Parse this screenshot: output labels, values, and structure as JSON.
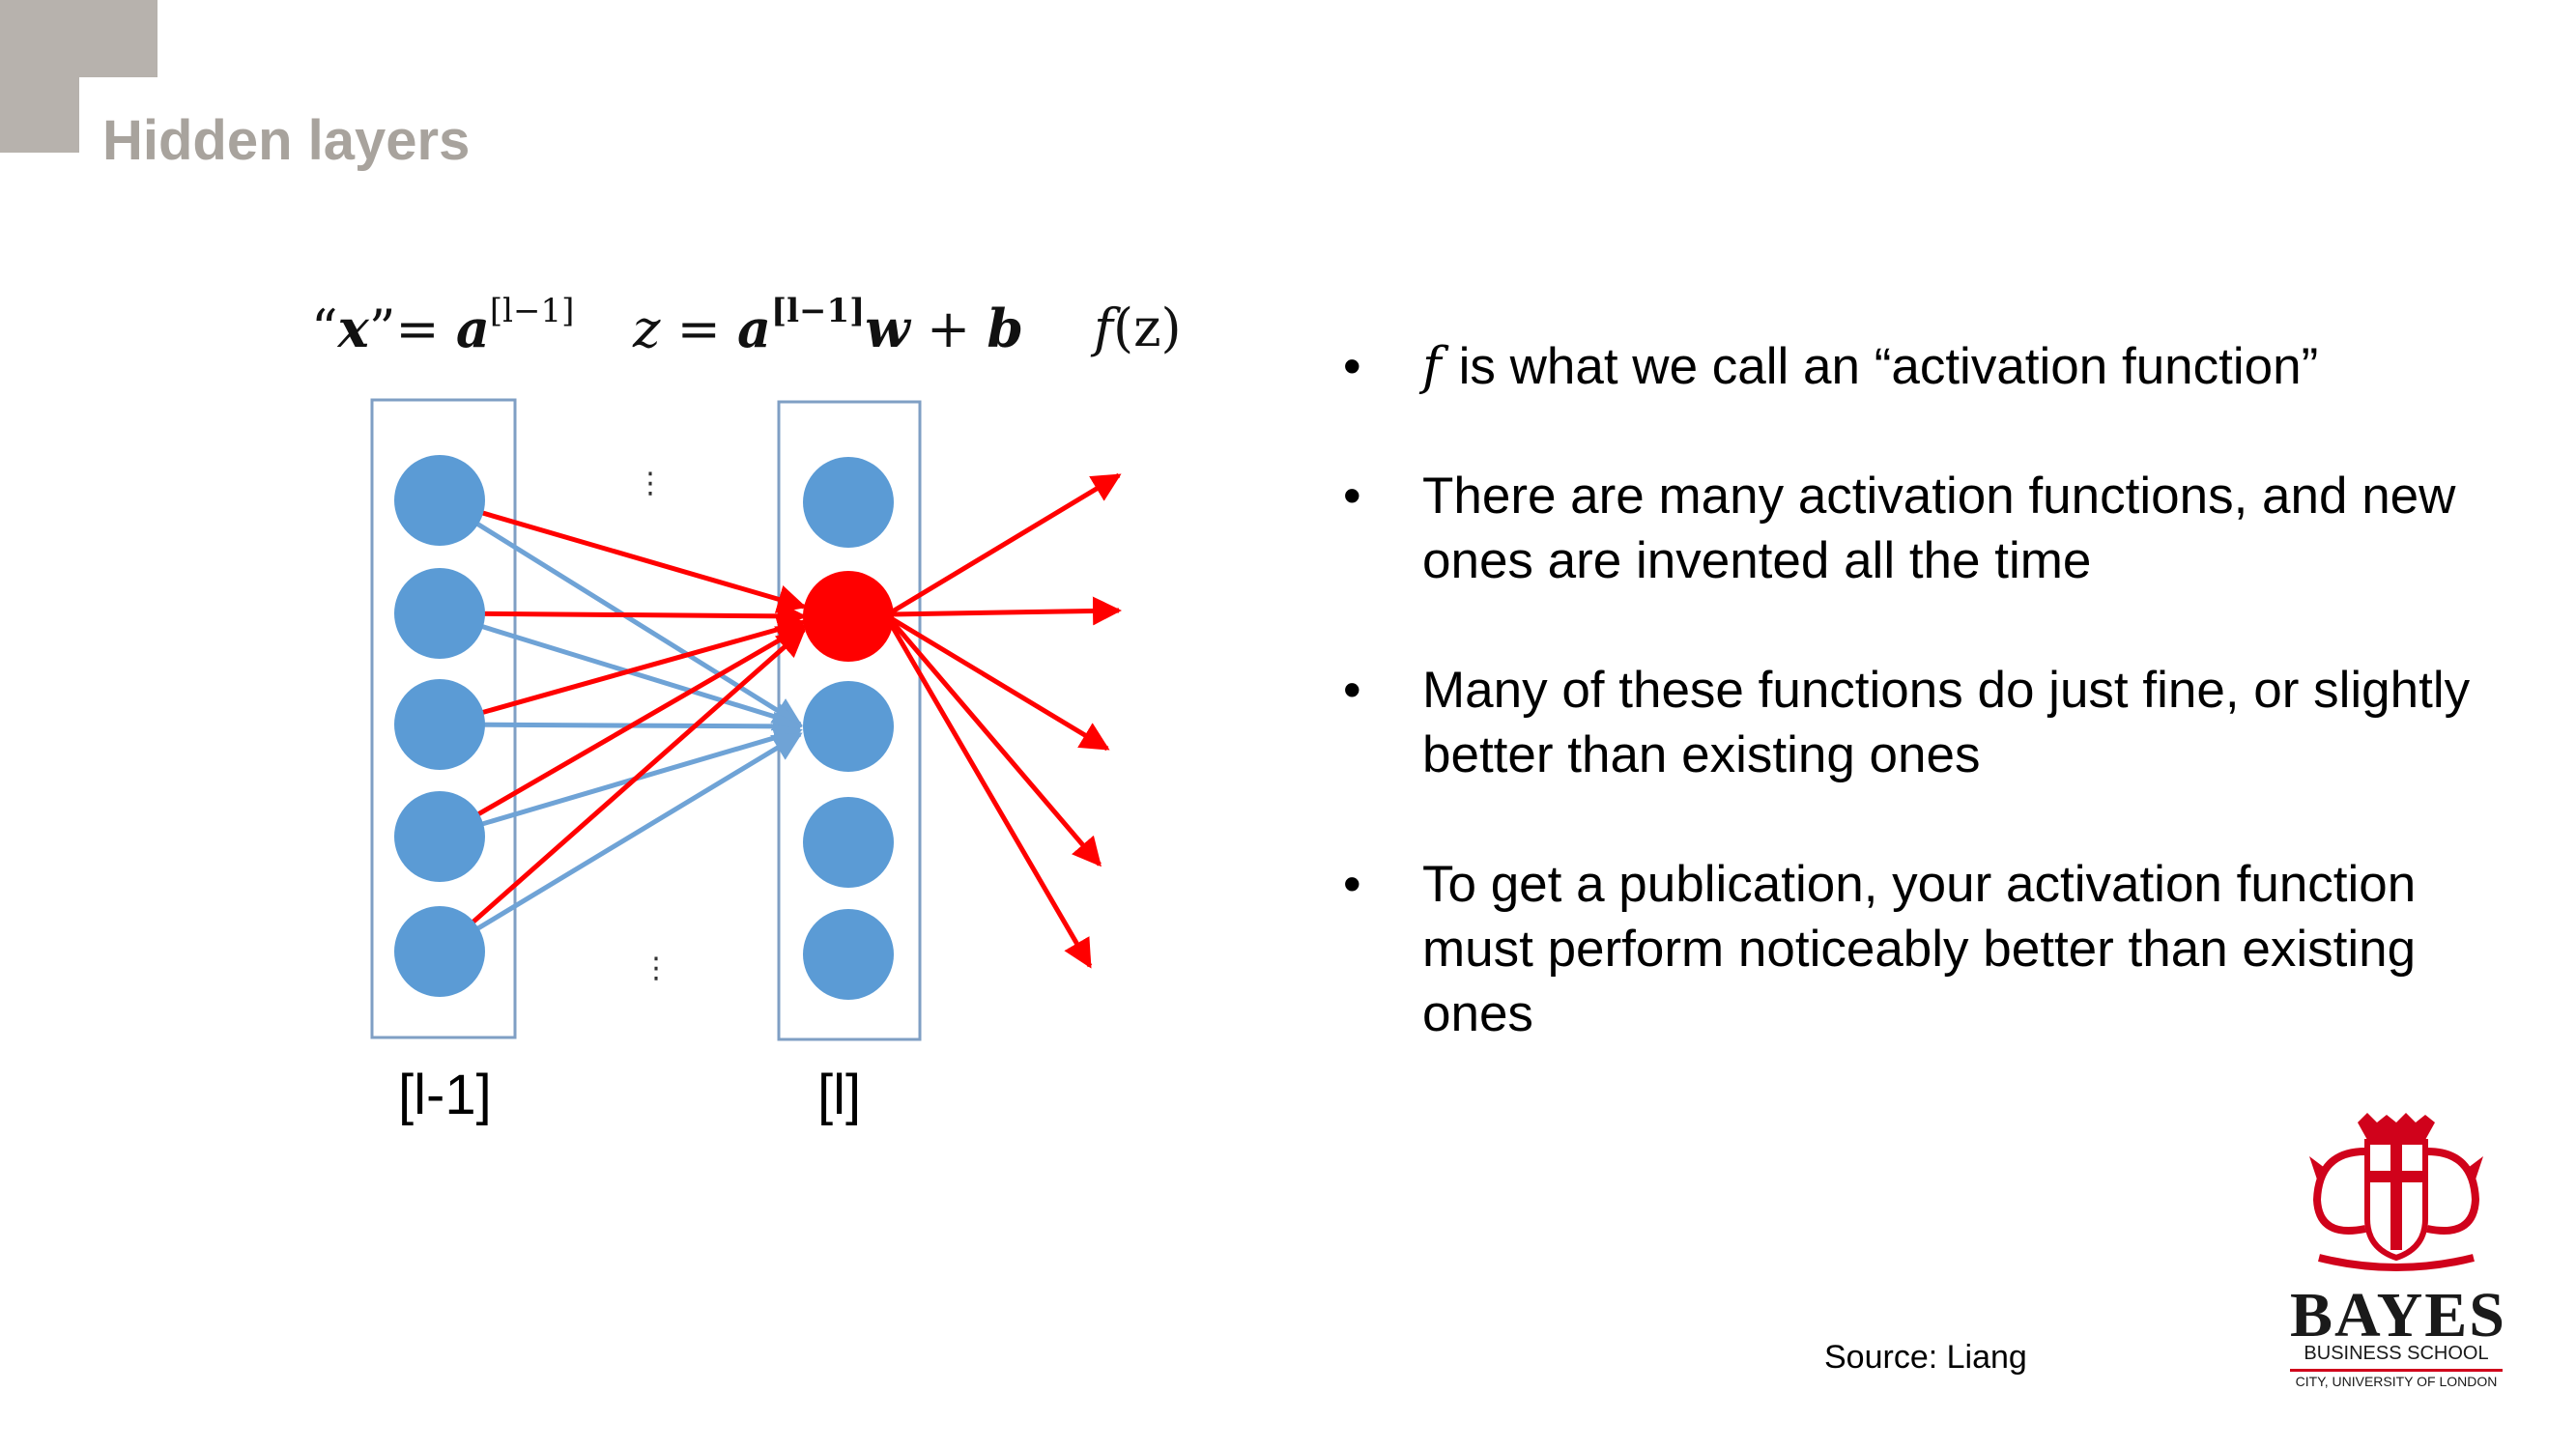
{
  "slide": {
    "title": "Hidden layers",
    "formulas": {
      "x_quote_open": "“",
      "x_var": "x",
      "x_quote_close": "”",
      "equals": "= ",
      "a_var": "a",
      "sup_prev": "[l−1]",
      "z_var": "z",
      "z_equals": " = ",
      "z_a": "a",
      "z_sup": "[l−1]",
      "z_w": "w",
      "plus": " + ",
      "z_b": "b",
      "f_var": "f",
      "f_arg": "(z)"
    },
    "layer_labels": {
      "previous": "[l-1]",
      "current": "[l]"
    },
    "ellipsis": "⋮",
    "bullets": [
      {
        "symbol": "f",
        "text": "is what we call an “activation function”"
      },
      {
        "text": "There are many activation functions, and new ones are invented all the time"
      },
      {
        "text": "Many of these functions do just fine, or slightly better than existing ones"
      },
      {
        "text": "To get a publication, your activation function must perform noticeably better than existing ones"
      }
    ],
    "bullet_char": "•",
    "source": "Source: Liang",
    "logo": {
      "name": "BAYES",
      "subtitle": "BUSINESS SCHOOL",
      "subtitle2": "CITY, UNIVERSITY OF LONDON"
    }
  },
  "colors": {
    "node_blue": "#5b9bd5",
    "highlight_red": "#ff0000",
    "box_border": "#7f9fc4",
    "title_gray": "#a8a39d",
    "corner_gray": "#b7b2ad"
  }
}
